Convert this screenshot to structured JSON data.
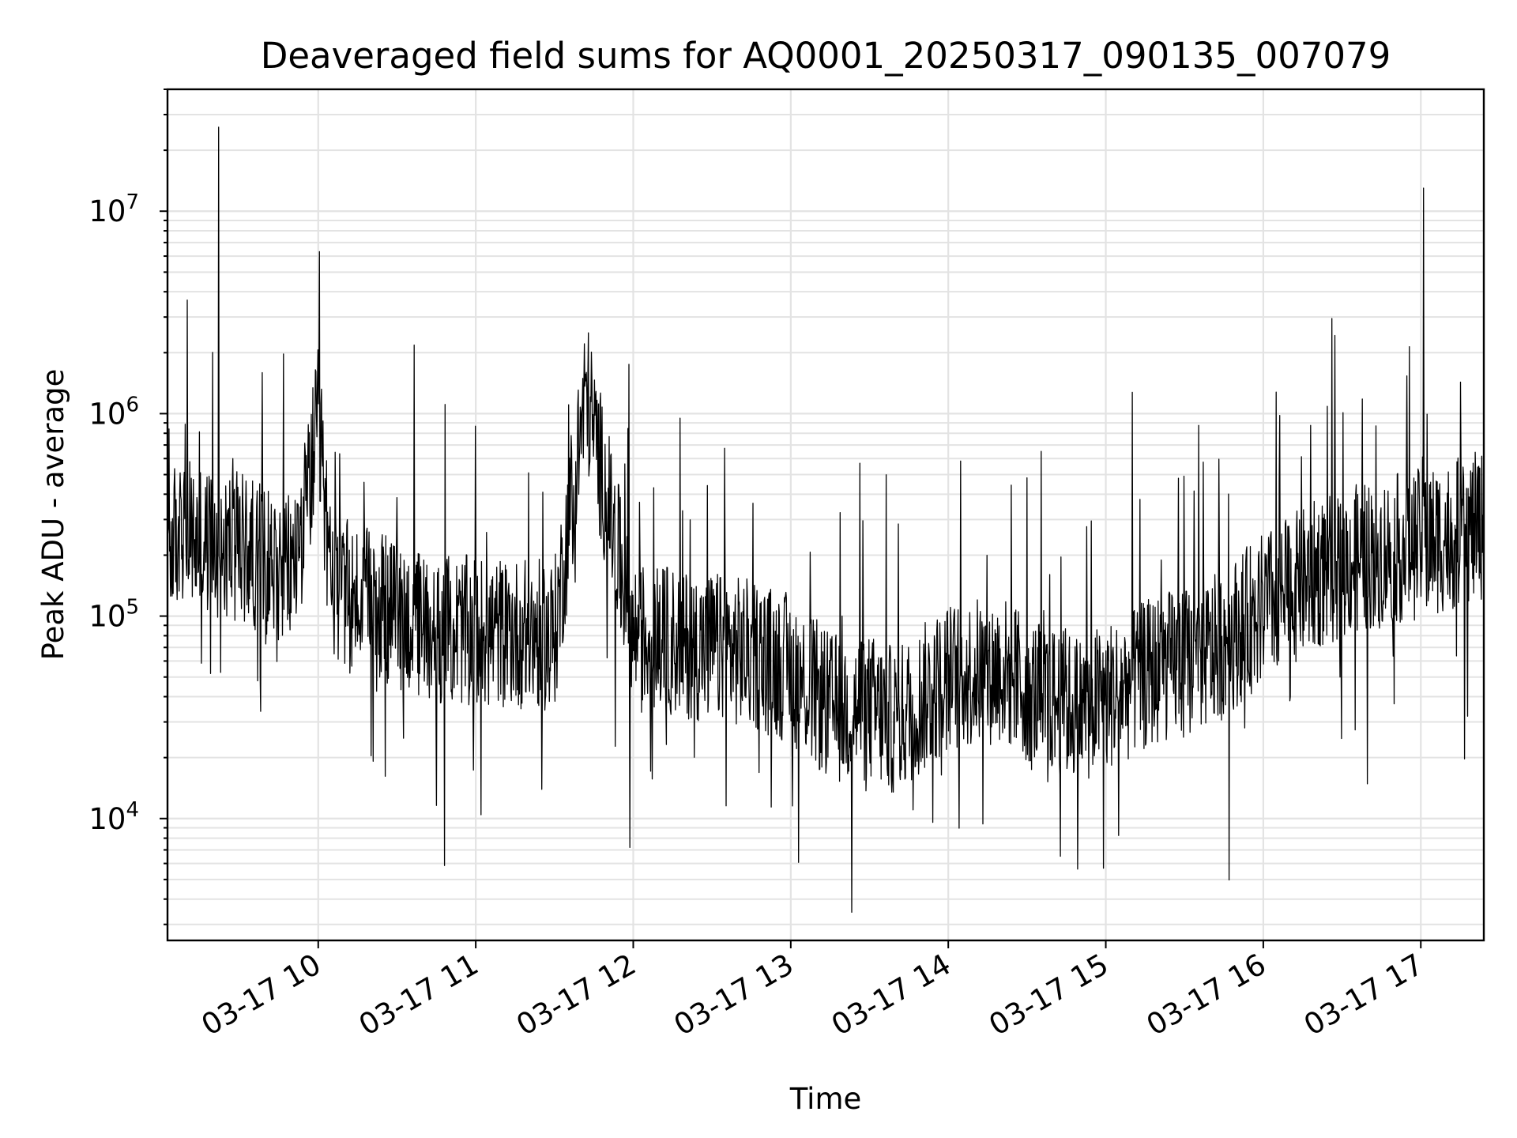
{
  "chart_data": {
    "type": "line",
    "title": "Deaveraged field sums for AQ0001_20250317_090135_007079",
    "xlabel": "Time",
    "ylabel": "Peak ADU - average",
    "yscale": "log",
    "ylim": [
      2500,
      40000000
    ],
    "xlim": [
      "2025-03-17T09:02:35",
      "2025-03-17T17:24:00"
    ],
    "x_ticks": [
      {
        "value": "2025-03-17T10:00:00",
        "label": "03-17 10"
      },
      {
        "value": "2025-03-17T11:00:00",
        "label": "03-17 11"
      },
      {
        "value": "2025-03-17T12:00:00",
        "label": "03-17 12"
      },
      {
        "value": "2025-03-17T13:00:00",
        "label": "03-17 13"
      },
      {
        "value": "2025-03-17T14:00:00",
        "label": "03-17 14"
      },
      {
        "value": "2025-03-17T15:00:00",
        "label": "03-17 15"
      },
      {
        "value": "2025-03-17T16:00:00",
        "label": "03-17 16"
      },
      {
        "value": "2025-03-17T17:00:00",
        "label": "03-17 17"
      }
    ],
    "y_ticks": [
      {
        "value": 10000,
        "base": "10",
        "exp": "4"
      },
      {
        "value": 100000,
        "base": "10",
        "exp": "5"
      },
      {
        "value": 1000000,
        "base": "10",
        "exp": "6"
      },
      {
        "value": 10000000,
        "base": "10",
        "exp": "7"
      }
    ],
    "grid": "major and minor",
    "series_color": "#000000",
    "series": [
      {
        "x": [
          "2025-03-17T09:02:35",
          "2025-03-17T09:10:00",
          "2025-03-17T09:15:00",
          "2025-03-17T09:20:00",
          "2025-03-17T09:22:00",
          "2025-03-17T09:30:00",
          "2025-03-17T09:40:00",
          "2025-03-17T09:50:00",
          "2025-03-17T09:55:00",
          "2025-03-17T10:00:00",
          "2025-03-17T10:05:00",
          "2025-03-17T10:15:00",
          "2025-03-17T10:30:00",
          "2025-03-17T10:45:00",
          "2025-03-17T11:00:00",
          "2025-03-17T11:30:00",
          "2025-03-17T11:42:00",
          "2025-03-17T12:00:00",
          "2025-03-17T12:30:00",
          "2025-03-17T12:45:00",
          "2025-03-17T13:00:00",
          "2025-03-17T13:15:00",
          "2025-03-17T13:30:00",
          "2025-03-17T13:40:00",
          "2025-03-17T14:00:00",
          "2025-03-17T14:20:00",
          "2025-03-17T14:35:00",
          "2025-03-17T14:50:00",
          "2025-03-17T15:00:00",
          "2025-03-17T15:20:00",
          "2025-03-17T15:40:00",
          "2025-03-17T16:00:00",
          "2025-03-17T16:20:00",
          "2025-03-17T16:40:00",
          "2025-03-17T17:00:00",
          "2025-03-17T17:01:00",
          "2025-03-17T17:24:00"
        ],
        "values": [
          230000,
          260000,
          220000,
          240000,
          26000000,
          220000,
          190000,
          170000,
          320000,
          900000,
          140000,
          120000,
          100000,
          85000,
          85000,
          80000,
          1300000,
          80000,
          70000,
          65000,
          55000,
          35000,
          35000,
          30000,
          50000,
          55000,
          40000,
          35000,
          40000,
          55000,
          65000,
          110000,
          160000,
          200000,
          230000,
          13000000,
          280000
        ]
      }
    ]
  }
}
